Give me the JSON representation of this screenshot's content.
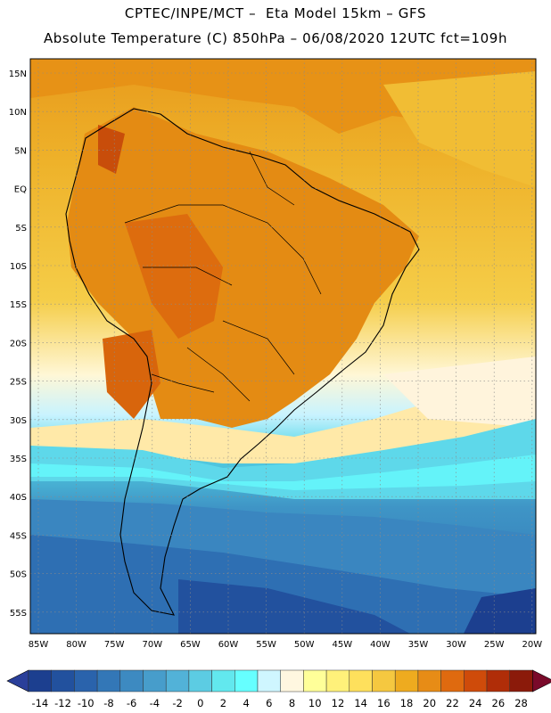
{
  "header": {
    "line1": "CPTEC/INPE/MCT –  Eta Model 15km – GFS",
    "line2": "Absolute Temperature (C) 850hPa – 06/08/2020 12UTC fct=109h"
  },
  "axes": {
    "lat_labels": [
      "15N",
      "10N",
      "5N",
      "EQ",
      "5S",
      "10S",
      "15S",
      "20S",
      "25S",
      "30S",
      "35S",
      "40S",
      "45S",
      "50S",
      "55S"
    ],
    "lon_labels": [
      "85W",
      "80W",
      "75W",
      "70W",
      "65W",
      "60W",
      "55W",
      "50W",
      "45W",
      "40W",
      "35W",
      "30W",
      "25W",
      "20W"
    ]
  },
  "colorbar": {
    "labels": [
      "-14",
      "-12",
      "-10",
      "-8",
      "-6",
      "-4",
      "-2",
      "0",
      "2",
      "4",
      "6",
      "8",
      "10",
      "12",
      "14",
      "16",
      "18",
      "20",
      "22",
      "24",
      "26",
      "28"
    ],
    "colors": [
      "#1c3f8f",
      "#22519e",
      "#2a63ac",
      "#3377b7",
      "#3d8ac1",
      "#479dcb",
      "#52b2d8",
      "#5ccce3",
      "#62e8ee",
      "#66ffff",
      "#cff6ff",
      "#fff7e0",
      "#ffff99",
      "#fff17a",
      "#fee05c",
      "#f5c840",
      "#eeab1f",
      "#e78c16",
      "#df6a0f",
      "#cf4b0a",
      "#b02d08",
      "#8b1a0a"
    ],
    "under_color": "#2a3f9a",
    "over_color": "#7a0a2a"
  }
}
